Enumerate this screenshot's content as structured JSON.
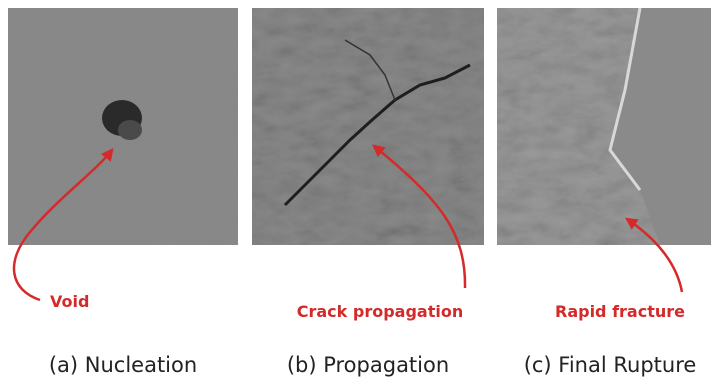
{
  "panels": [
    {
      "annotation": "Void",
      "caption": "(a) Nucleation"
    },
    {
      "annotation": "Crack propagation",
      "caption": "(b) Propagation"
    },
    {
      "annotation": "Rapid fracture",
      "caption": "(c) Final Rupture"
    }
  ]
}
